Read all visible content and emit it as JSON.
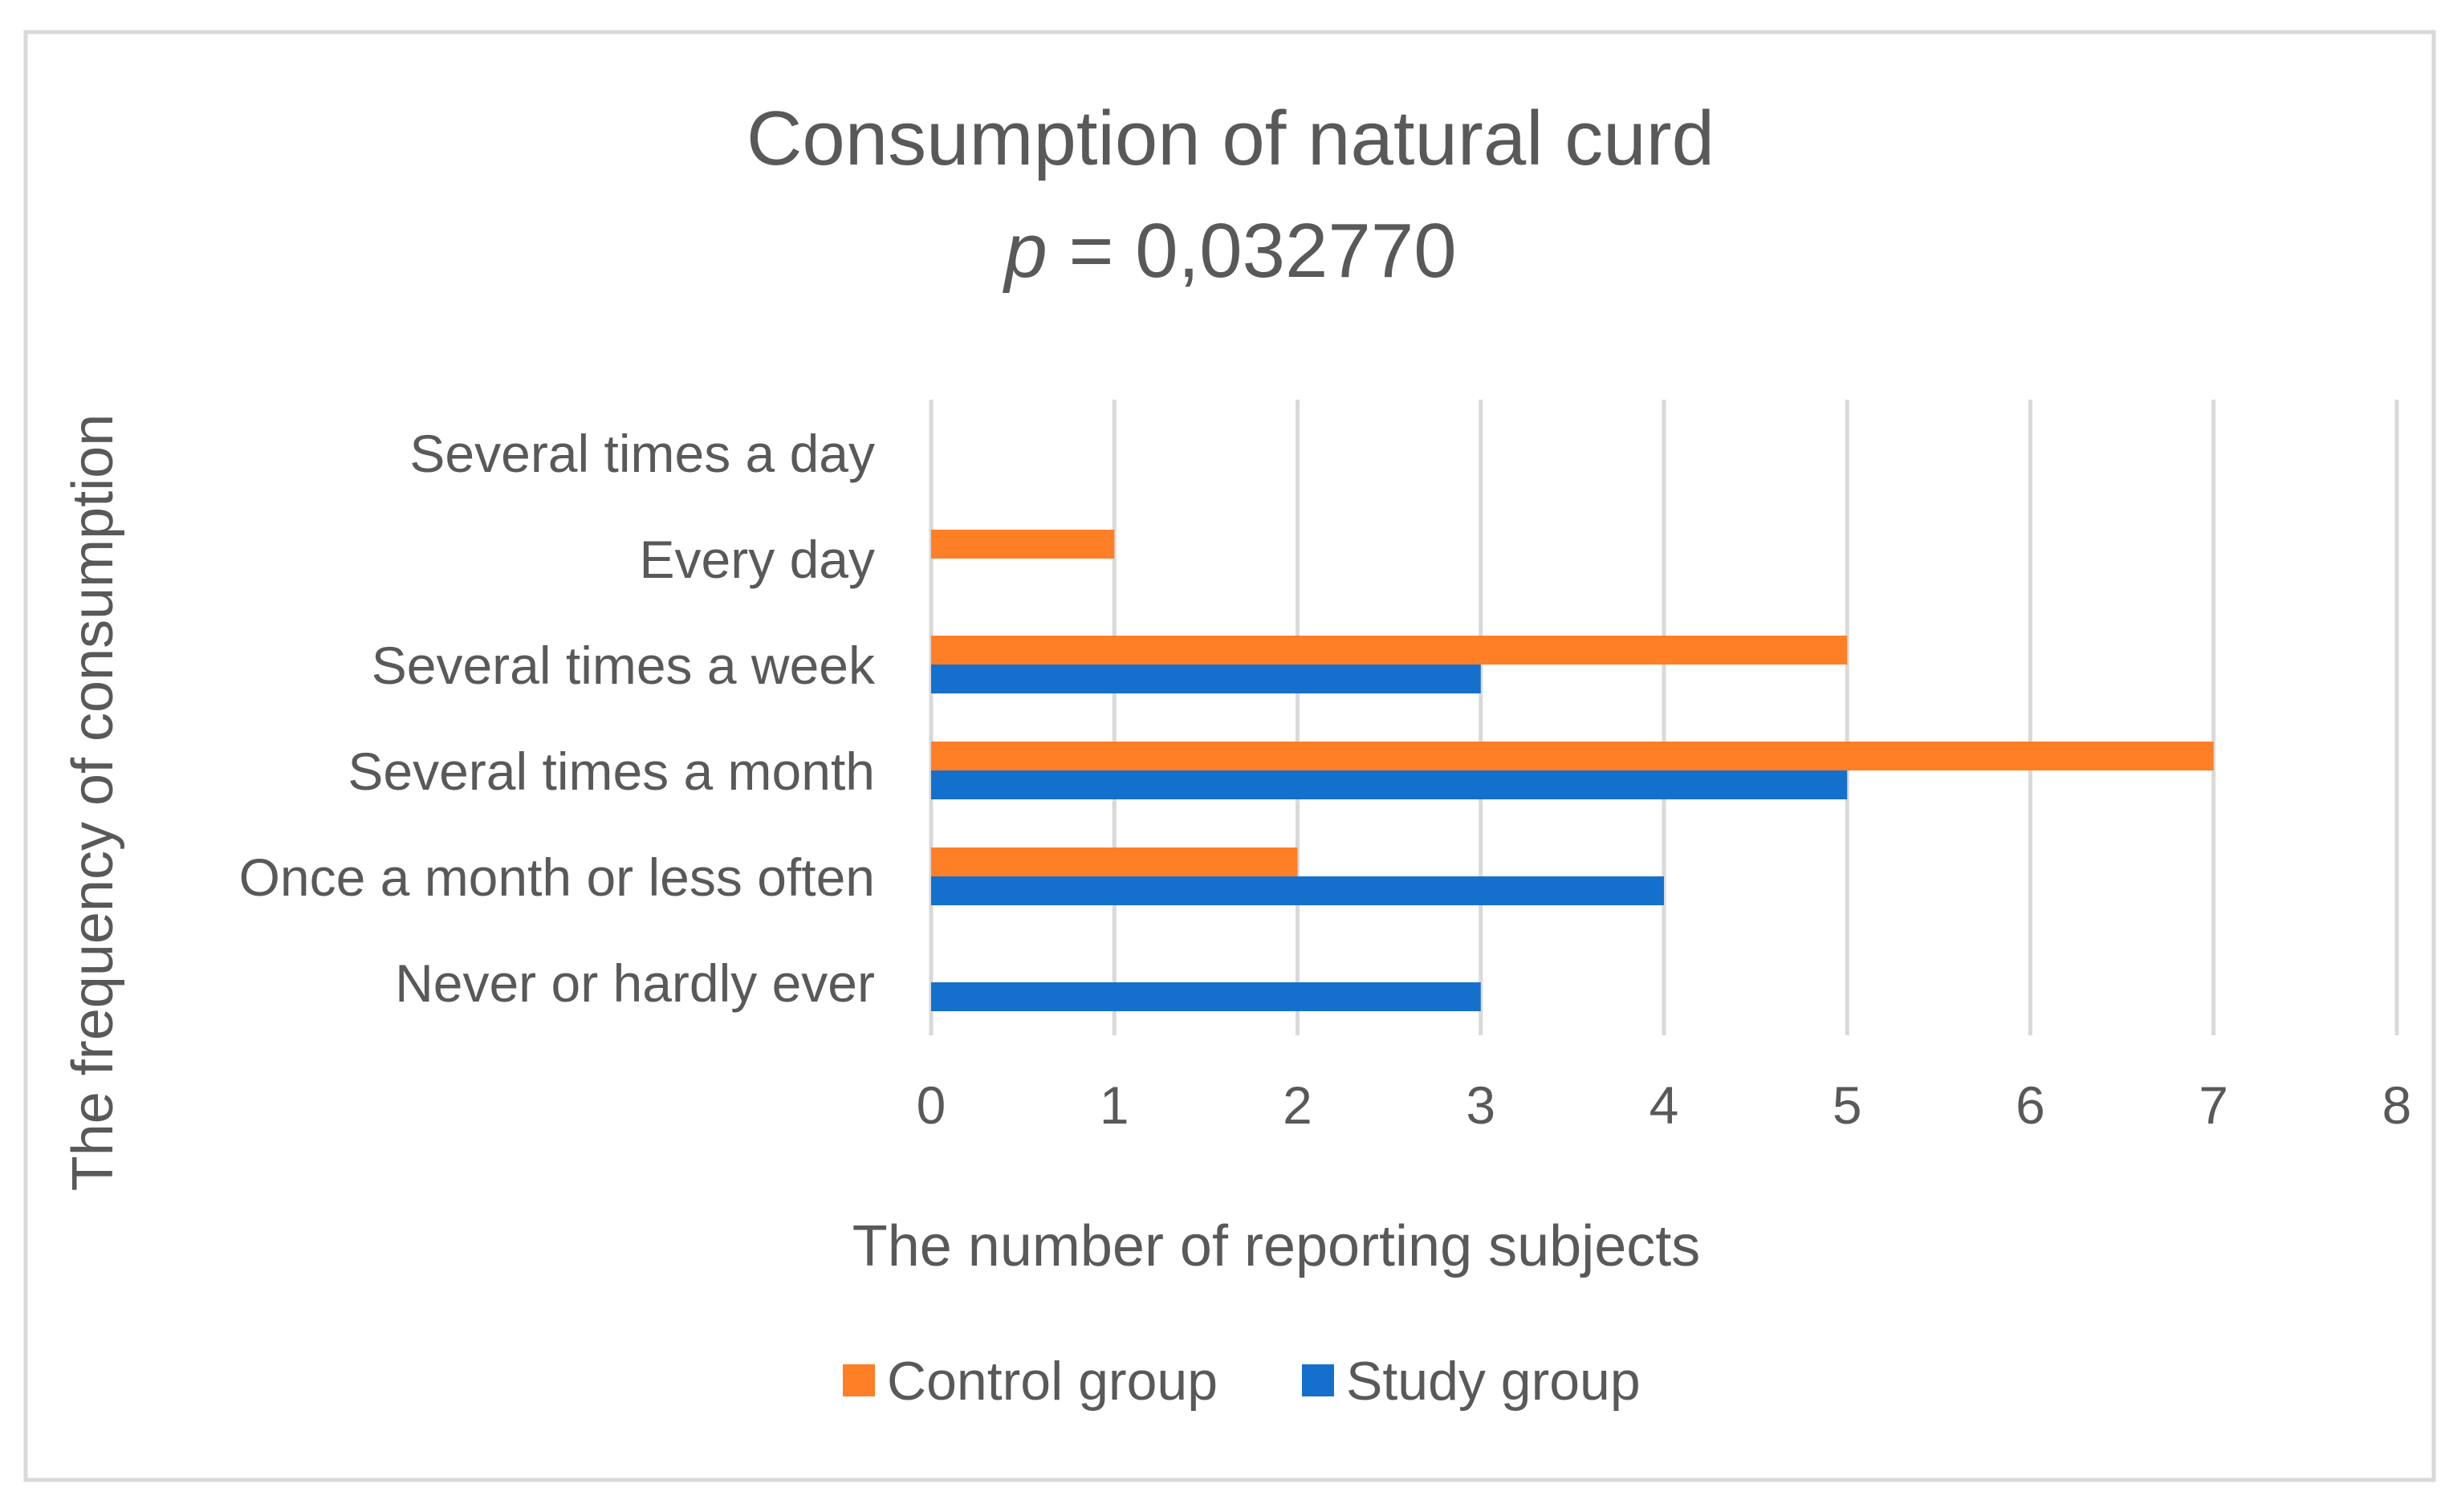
{
  "chart_data": {
    "type": "bar",
    "orientation": "horizontal",
    "title": "Consumption of natural curd",
    "subtitle_italic": "p",
    "subtitle_rest": " = 0,032770",
    "xlabel": "The number of reporting subjects",
    "ylabel": "The frequency of consumption",
    "xlim": [
      0,
      8
    ],
    "xticks": [
      "0",
      "1",
      "2",
      "3",
      "4",
      "5",
      "6",
      "7",
      "8"
    ],
    "grid": true,
    "legend_position": "bottom",
    "categories": [
      "Several times a day",
      "Every day",
      "Several times a week",
      "Several times a month",
      "Once a month or less often",
      "Never or hardly ever"
    ],
    "series": [
      {
        "name": "Control group",
        "color": "#FF7F27",
        "values": [
          0,
          1,
          5,
          7,
          2,
          0
        ]
      },
      {
        "name": "Study group",
        "color": "#1570CD",
        "values": [
          0,
          0,
          3,
          5,
          4,
          3
        ]
      }
    ]
  }
}
